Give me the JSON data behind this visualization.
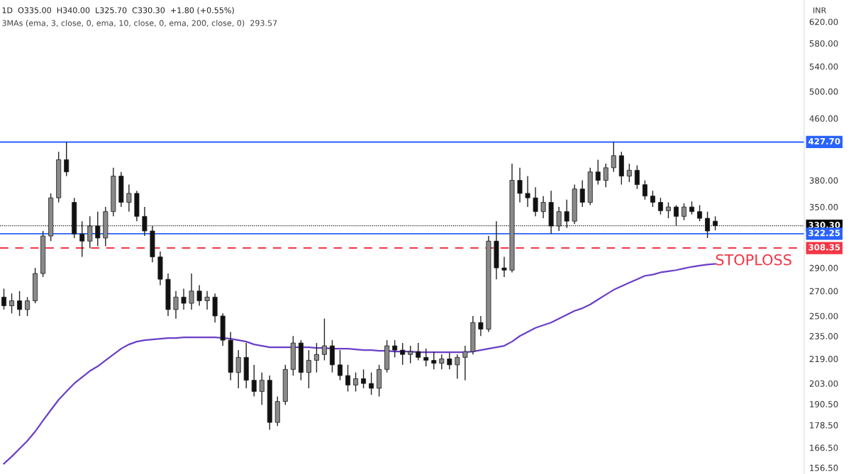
{
  "chart_data": {
    "type": "candlestick",
    "title": "1D  O335.00  H340.00  L325.70  C330.30  +1.80 (+0.55%)",
    "subtitle": "3MAs (ema, 3, close, 0, ema, 10, close, 0, ema, 200, close, 0)  293.57",
    "ylabel": "INR",
    "categories": [
      null,
      null,
      null,
      null,
      null,
      null,
      null,
      null,
      null,
      null,
      null,
      null,
      null,
      null,
      null,
      null,
      null,
      null,
      null,
      null,
      null,
      null,
      null,
      null,
      null,
      null,
      null,
      null,
      null,
      null,
      null,
      null,
      null,
      null,
      null,
      null,
      null,
      null,
      null,
      null,
      null,
      null,
      null,
      null,
      null,
      null,
      null,
      null,
      null,
      null,
      null,
      null,
      null,
      null,
      null,
      null,
      null,
      null,
      null,
      null,
      null,
      null,
      null,
      null,
      null,
      null,
      null,
      null,
      null,
      null,
      null,
      null,
      null,
      null,
      null,
      null,
      null,
      null,
      null,
      null,
      null,
      null,
      null,
      null,
      null,
      null,
      null,
      null,
      null,
      null,
      null,
      null
    ],
    "series": [
      {
        "ohlc": [
          [
            265,
            272,
            255,
            258
          ],
          [
            258,
            268,
            252,
            262
          ],
          [
            262,
            270,
            250,
            255
          ],
          [
            255,
            265,
            250,
            262
          ],
          [
            262,
            290,
            260,
            285
          ],
          [
            285,
            325,
            282,
            320
          ],
          [
            320,
            365,
            315,
            360
          ],
          [
            360,
            415,
            355,
            405
          ],
          [
            405,
            427.7,
            385,
            390
          ],
          [
            355,
            360,
            318,
            322
          ],
          [
            322,
            335,
            300,
            315
          ],
          [
            315,
            340,
            308,
            330
          ],
          [
            330,
            345,
            310,
            318
          ],
          [
            318,
            350,
            310,
            345
          ],
          [
            345,
            395,
            340,
            385
          ],
          [
            385,
            390,
            350,
            355
          ],
          [
            355,
            375,
            345,
            365
          ],
          [
            365,
            368,
            335,
            340
          ],
          [
            340,
            350,
            320,
            325
          ],
          [
            325,
            330,
            295,
            300
          ],
          [
            300,
            305,
            275,
            280
          ],
          [
            280,
            285,
            250,
            255
          ],
          [
            255,
            270,
            248,
            265
          ],
          [
            265,
            272,
            255,
            260
          ],
          [
            260,
            285,
            255,
            270
          ],
          [
            270,
            275,
            258,
            262
          ],
          [
            262,
            270,
            255,
            265
          ],
          [
            265,
            268,
            245,
            250
          ],
          [
            250,
            252,
            228,
            232
          ],
          [
            232,
            238,
            205,
            210
          ],
          [
            210,
            225,
            200,
            220
          ],
          [
            220,
            230,
            200,
            205
          ],
          [
            205,
            215,
            195,
            198
          ],
          [
            198,
            210,
            190,
            205
          ],
          [
            205,
            208,
            176,
            180
          ],
          [
            180,
            195,
            178,
            192
          ],
          [
            192,
            215,
            190,
            212
          ],
          [
            212,
            235,
            208,
            230
          ],
          [
            230,
            232,
            205,
            210
          ],
          [
            210,
            225,
            200,
            218
          ],
          [
            218,
            230,
            210,
            222
          ],
          [
            222,
            248,
            218,
            228
          ],
          [
            228,
            232,
            210,
            215
          ],
          [
            215,
            225,
            205,
            208
          ],
          [
            208,
            215,
            198,
            202
          ],
          [
            202,
            210,
            198,
            206
          ],
          [
            206,
            212,
            200,
            203
          ],
          [
            203,
            210,
            196,
            200
          ],
          [
            200,
            215,
            195,
            212
          ],
          [
            212,
            232,
            210,
            228
          ],
          [
            228,
            232,
            220,
            225
          ],
          [
            225,
            230,
            215,
            222
          ],
          [
            222,
            228,
            216,
            224
          ],
          [
            224,
            230,
            218,
            220
          ],
          [
            220,
            226,
            214,
            218
          ],
          [
            218,
            224,
            212,
            216
          ],
          [
            216,
            222,
            212,
            219
          ],
          [
            219,
            223,
            212,
            215
          ],
          [
            215,
            222,
            206,
            220
          ],
          [
            220,
            228,
            205,
            224
          ],
          [
            224,
            250,
            222,
            245
          ],
          [
            245,
            250,
            235,
            240
          ],
          [
            240,
            320,
            238,
            315
          ],
          [
            315,
            335,
            280,
            290
          ],
          [
            290,
            300,
            282,
            288
          ],
          [
            288,
            400,
            286,
            380
          ],
          [
            380,
            395,
            355,
            365
          ],
          [
            365,
            385,
            350,
            360
          ],
          [
            360,
            372,
            340,
            345
          ],
          [
            345,
            362,
            338,
            355
          ],
          [
            355,
            368,
            322.25,
            330
          ],
          [
            330,
            350,
            325,
            345
          ],
          [
            345,
            358,
            328,
            335
          ],
          [
            335,
            375,
            332,
            370
          ],
          [
            370,
            380,
            350,
            355
          ],
          [
            355,
            395,
            352,
            390
          ],
          [
            390,
            405,
            375,
            380
          ],
          [
            380,
            400,
            372,
            395
          ],
          [
            395,
            427.7,
            390,
            410
          ],
          [
            410,
            415,
            375,
            385
          ],
          [
            385,
            400,
            378,
            392
          ],
          [
            392,
            398,
            370,
            375
          ],
          [
            375,
            380,
            358,
            362
          ],
          [
            362,
            368,
            350,
            355
          ],
          [
            355,
            360,
            342,
            346
          ],
          [
            346,
            355,
            338,
            350
          ],
          [
            350,
            352,
            330,
            340
          ],
          [
            340,
            354,
            336,
            350
          ],
          [
            350,
            356,
            342,
            345
          ],
          [
            345,
            352,
            335,
            338
          ],
          [
            338,
            345,
            318,
            325
          ],
          [
            335,
            340,
            325.7,
            330.3
          ]
        ]
      },
      {
        "type": "line",
        "color": "#6a3fc8",
        "values": [
          158.5,
          162,
          166,
          170,
          175,
          181,
          187,
          193,
          198,
          203,
          207,
          211,
          214,
          218,
          222,
          226,
          229,
          231,
          232,
          232.5,
          233,
          233.5,
          233.5,
          234,
          234,
          234,
          234,
          234,
          233.5,
          233,
          232,
          231,
          229,
          228,
          227,
          227,
          227,
          227,
          227,
          227,
          226.5,
          226.5,
          226,
          226,
          226,
          225.5,
          225,
          225,
          224.5,
          224.5,
          224,
          224,
          224,
          223.5,
          223.5,
          223.5,
          223.5,
          223.5,
          223.5,
          223.5,
          224,
          225,
          226,
          227,
          228,
          231,
          235,
          238,
          241,
          243,
          245,
          248,
          251,
          254,
          256,
          259,
          263,
          267,
          271,
          274,
          277,
          280,
          283,
          284,
          286,
          287,
          288,
          289.5,
          291,
          292,
          293,
          293.57
        ]
      }
    ],
    "log": true,
    "ylim": [
      153.5,
      663
    ],
    "yticks": [
      {
        "value": 156.5,
        "label": "156.50"
      },
      {
        "value": 166.5,
        "label": "166.50"
      },
      {
        "value": 178.5,
        "label": "178.50"
      },
      {
        "value": 190.5,
        "label": "190.50"
      },
      {
        "value": 203,
        "label": "203.00"
      },
      {
        "value": 219,
        "label": "219.00"
      },
      {
        "value": 235,
        "label": "235.00"
      },
      {
        "value": 250,
        "label": "250.00"
      },
      {
        "value": 270,
        "label": "270.00"
      },
      {
        "value": 290,
        "label": "290.00"
      },
      {
        "value": 350,
        "label": "350.00"
      },
      {
        "value": 380,
        "label": "380.00"
      },
      {
        "value": 460,
        "label": "460.00"
      },
      {
        "value": 500,
        "label": "500.00"
      },
      {
        "value": 540,
        "label": "540.00"
      },
      {
        "value": 580,
        "label": "580.00"
      },
      {
        "value": 620,
        "label": "620.00"
      }
    ],
    "ref_lines": [
      {
        "axis": "y",
        "value": 427.7,
        "label": "427.70",
        "color": "#2962ff",
        "line_style": "solid"
      },
      {
        "axis": "y",
        "value": 330.3,
        "label": "330.30",
        "color": "#000000",
        "line_style": "dotted"
      },
      {
        "axis": "y",
        "value": 322.25,
        "label": "322.25",
        "color": "#2962ff",
        "line_style": "solid"
      },
      {
        "axis": "y",
        "value": 308.35,
        "label": "308.35",
        "color": "#f23645",
        "line_style": "dashed"
      }
    ],
    "annotations": [
      "STOPLOSS"
    ],
    "grid": false,
    "tick_labels": "y"
  }
}
